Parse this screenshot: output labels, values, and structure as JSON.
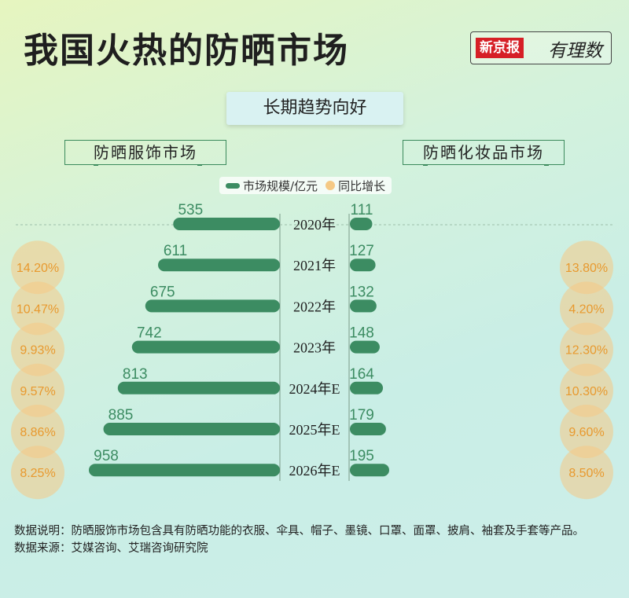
{
  "header": {
    "title": "我国火热的防晒市场",
    "logo_main": "新京报",
    "logo_sub": "有理数",
    "subtitle": "长期趋势向好"
  },
  "panels": {
    "left_title": "防晒服饰市场",
    "right_title": "防晒化妆品市场"
  },
  "legend": {
    "bar_label": "市场规模/亿元",
    "dot_label": "同比增长"
  },
  "colors": {
    "bar": "#3c8c62",
    "bar_text": "#3c8c62",
    "bubble": "#f5c985",
    "bubble_text": "#e8992e"
  },
  "chart_data": {
    "type": "bar",
    "categories": [
      "2020年",
      "2021年",
      "2022年",
      "2023年",
      "2024年E",
      "2025年E",
      "2026年E"
    ],
    "series": [
      {
        "name": "防晒服饰市场",
        "values": [
          535,
          611,
          675,
          742,
          813,
          885,
          958
        ],
        "growth": [
          null,
          "14.20%",
          "10.47%",
          "9.93%",
          "9.57%",
          "8.86%",
          "8.25%"
        ]
      },
      {
        "name": "防晒化妆品市场",
        "values": [
          111,
          127,
          132,
          148,
          164,
          179,
          195
        ],
        "growth": [
          null,
          "13.80%",
          "4.20%",
          "12.30%",
          "10.30%",
          "9.60%",
          "8.50%"
        ]
      }
    ],
    "unit": "亿元"
  },
  "footnote": {
    "note": "数据说明：防晒服饰市场包含具有防晒功能的衣服、伞具、帽子、墨镜、口罩、面罩、披肩、袖套及手套等产品。",
    "source": "数据来源：艾媒咨询、艾瑞咨询研究院"
  }
}
